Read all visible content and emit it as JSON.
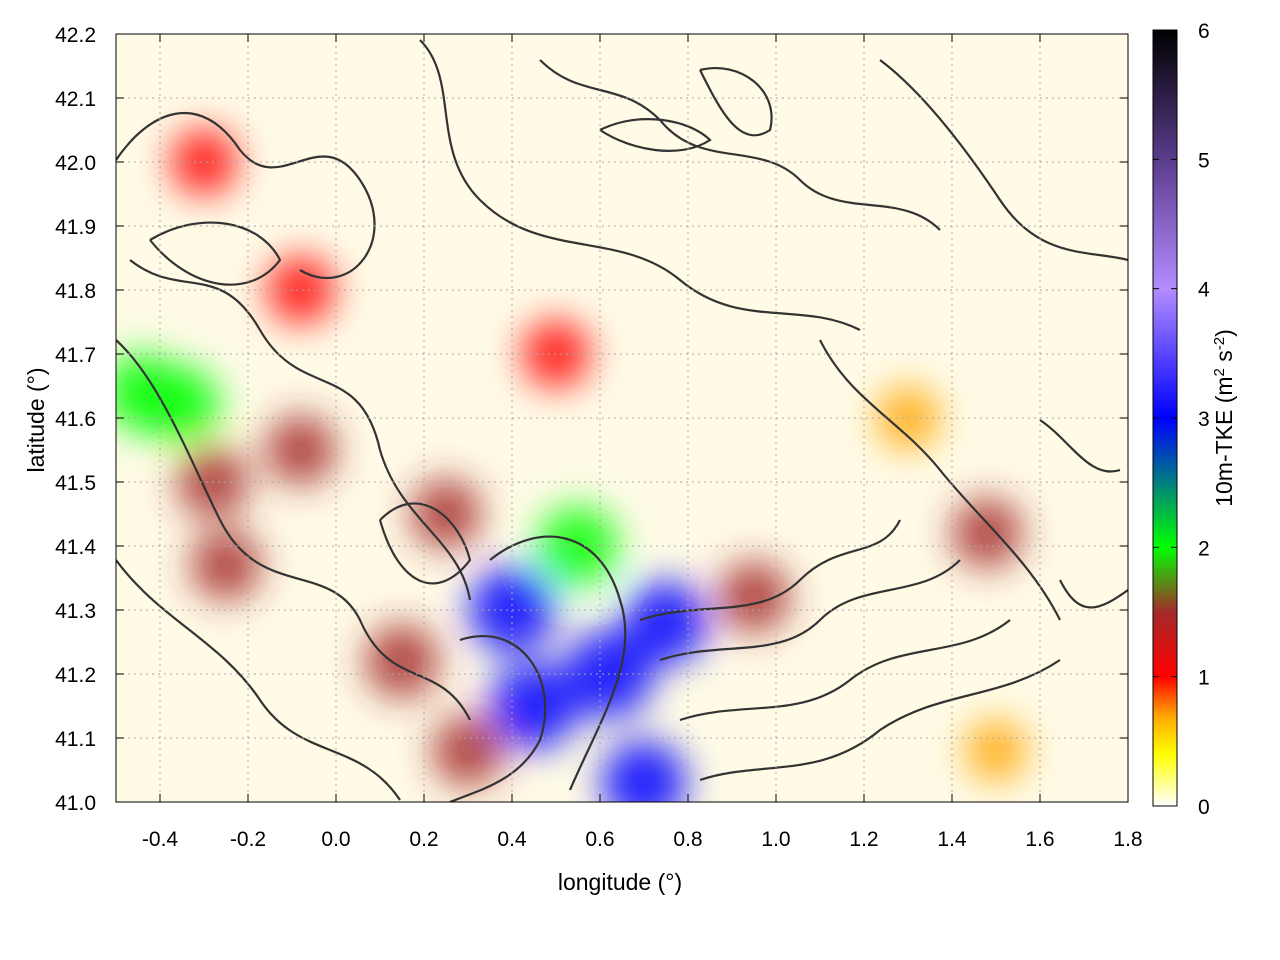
{
  "chart_data": {
    "type": "heatmap",
    "xlabel": "longitude (°)",
    "ylabel": "latitude (°)",
    "xlim": [
      -0.5,
      1.8
    ],
    "ylim": [
      41.0,
      42.2
    ],
    "x_ticks": [
      -0.4,
      -0.2,
      0.0,
      0.2,
      0.4,
      0.6,
      0.8,
      1.0,
      1.2,
      1.4,
      1.6,
      1.8
    ],
    "x_tick_labels": [
      "-0.4",
      "-0.2",
      "0.0",
      "0.2",
      "0.4",
      "0.6",
      "0.8",
      "1.0",
      "1.2",
      "1.4",
      "1.6",
      "1.8"
    ],
    "y_ticks": [
      41.0,
      41.1,
      41.2,
      41.3,
      41.4,
      41.5,
      41.6,
      41.7,
      41.8,
      41.9,
      42.0,
      42.1,
      42.2
    ],
    "y_tick_labels": [
      "41.0",
      "41.1",
      "41.2",
      "41.3",
      "41.4",
      "41.5",
      "41.6",
      "41.7",
      "41.8",
      "41.9",
      "42.0",
      "42.1",
      "42.2"
    ],
    "grid": true,
    "colorbar": {
      "label_main": "10m-TKE (m",
      "label_sup1": "2",
      "label_mid": " s",
      "label_sup2": "-2",
      "label_end": ")",
      "range": [
        0,
        6
      ],
      "ticks": [
        0,
        1,
        2,
        3,
        4,
        5,
        6
      ],
      "tick_labels": [
        "0",
        "1",
        "2",
        "3",
        "4",
        "5",
        "6"
      ],
      "stops": [
        {
          "v": 0.0,
          "color": "#ffffff"
        },
        {
          "v": 0.4,
          "color": "#ffff00"
        },
        {
          "v": 0.7,
          "color": "#ffa500"
        },
        {
          "v": 1.0,
          "color": "#ff0000"
        },
        {
          "v": 1.5,
          "color": "#a52a2a"
        },
        {
          "v": 2.0,
          "color": "#00ff00"
        },
        {
          "v": 3.0,
          "color": "#0000ff"
        },
        {
          "v": 4.0,
          "color": "#b38cff"
        },
        {
          "v": 5.0,
          "color": "#5a3c8c"
        },
        {
          "v": 6.0,
          "color": "#000000"
        }
      ]
    },
    "hotspots": [
      {
        "x": -0.44,
        "y": 41.64,
        "value": 1.9
      },
      {
        "x": -0.35,
        "y": 41.62,
        "value": 1.7
      },
      {
        "x": -0.28,
        "y": 41.5,
        "value": 1.3
      },
      {
        "x": -0.25,
        "y": 41.37,
        "value": 1.2
      },
      {
        "x": -0.08,
        "y": 41.55,
        "value": 1.2
      },
      {
        "x": -0.08,
        "y": 41.8,
        "value": 1.0
      },
      {
        "x": -0.3,
        "y": 42.0,
        "value": 0.9
      },
      {
        "x": 0.15,
        "y": 41.22,
        "value": 1.5
      },
      {
        "x": 0.25,
        "y": 41.45,
        "value": 1.2
      },
      {
        "x": 0.3,
        "y": 41.08,
        "value": 1.3
      },
      {
        "x": 0.4,
        "y": 41.3,
        "value": 2.5
      },
      {
        "x": 0.45,
        "y": 41.15,
        "value": 2.6
      },
      {
        "x": 0.55,
        "y": 41.4,
        "value": 2.0
      },
      {
        "x": 0.62,
        "y": 41.2,
        "value": 2.7
      },
      {
        "x": 0.7,
        "y": 41.03,
        "value": 2.4
      },
      {
        "x": 0.75,
        "y": 41.28,
        "value": 2.2
      },
      {
        "x": 0.95,
        "y": 41.32,
        "value": 1.3
      },
      {
        "x": 0.5,
        "y": 41.7,
        "value": 1.0
      },
      {
        "x": 1.48,
        "y": 41.42,
        "value": 1.2
      },
      {
        "x": 1.3,
        "y": 41.6,
        "value": 0.6
      },
      {
        "x": 1.5,
        "y": 41.08,
        "value": 0.45
      }
    ],
    "series": []
  }
}
